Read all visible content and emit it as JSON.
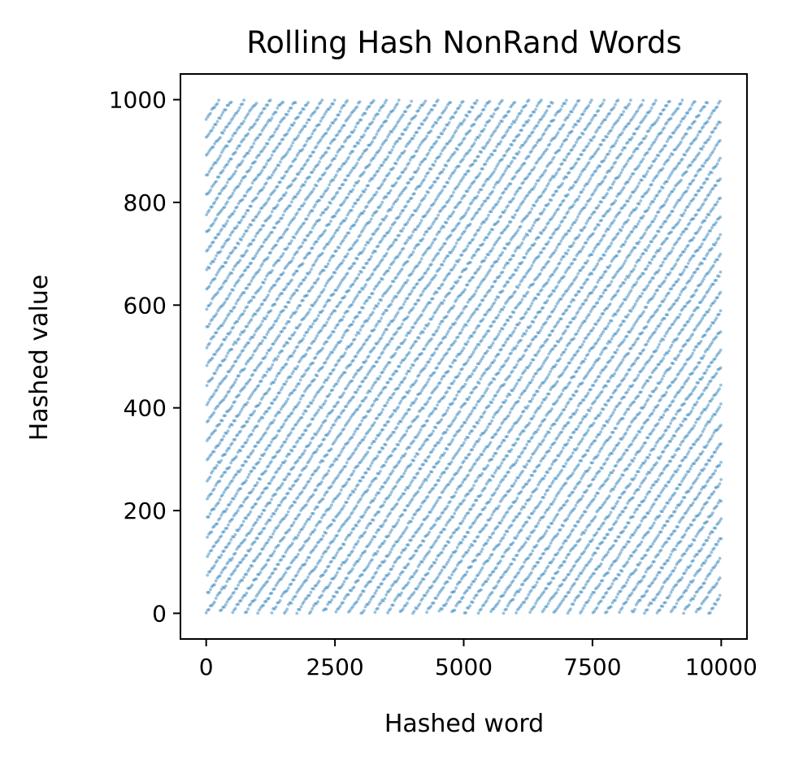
{
  "chart_data": {
    "type": "scatter",
    "title": "Rolling Hash NonRand Words",
    "xlabel": "Hashed word",
    "ylabel": "Hashed value",
    "xlim": [
      -500,
      10500
    ],
    "ylim": [
      -50,
      1050
    ],
    "x_ticks": [
      0,
      2500,
      5000,
      7500,
      10000
    ],
    "x_tick_labels": [
      "0",
      "2500",
      "5000",
      "7500",
      "10000"
    ],
    "y_ticks": [
      0,
      200,
      400,
      600,
      800,
      1000
    ],
    "y_tick_labels": [
      "0",
      "200",
      "400",
      "600",
      "800",
      "1000"
    ],
    "grid": false,
    "legend": "none",
    "marker_color": "#1f77b4",
    "marker_alpha": 0.45,
    "series": [
      {
        "x_range": [
          0,
          9999
        ],
        "y_range": [
          0,
          999
        ],
        "n_points": 10000,
        "pattern": "parallel descending stripes (hash wraps modulo 1000)"
      }
    ]
  }
}
